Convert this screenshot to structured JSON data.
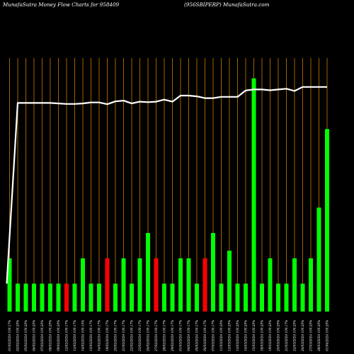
{
  "header": {
    "title_left": "MunafaSutra  Money Flow  Charts for 958409",
    "title_right": "(956SBIPERP) MunafaSutra.com"
  },
  "colors": {
    "background": "#000000",
    "grid": "#cc7a00",
    "up": "#00ff00",
    "down": "#ff0000",
    "line": "#ffffff",
    "label": "#ffffff"
  },
  "chart_data": {
    "type": "bar",
    "title": "",
    "ylim": [
      0,
      100
    ],
    "categories": [
      "01/02/2024 100.17%",
      "02/02/2024 100.20%",
      "05/02/2024 100.20%",
      "06/02/2024 100.20%",
      "07/02/2024 100.20%",
      "08/02/2024 100.20%",
      "09/02/2024 100.20%",
      "12/02/2024 100.17%",
      "13/02/2024 100.17%",
      "14/02/2024 100.14%",
      "15/02/2024 100.17%",
      "16/02/2024 100.17%",
      "19/02/2024 100.17%",
      "20/02/2024 100.17%",
      "21/02/2024 100.17%",
      "22/02/2024 100.17%",
      "23/02/2024 100.17%",
      "26/02/2024 100.17%",
      "27/02/2024 100.17%",
      "28/02/2024 100.17%",
      "29/02/2024 100.17%",
      "01/03/2024 100.17%",
      "04/03/2024 100.17%",
      "05/03/2024 100.17%",
      "06/03/2024 100.17%",
      "07/03/2024 100.17%",
      "11/03/2024 100.20%",
      "12/03/2024 100.20%",
      "13/03/2024 100.20%",
      "14/03/2024 100.20%",
      "15/03/2024 100.20%",
      "18/03/2024 100.20%",
      "19/03/2024 100.20%",
      "20/03/2024 100.20%",
      "21/03/2024 100.17%",
      "22/03/2024 100.20%",
      "26/03/2024 100.20%",
      "27/03/2024 100.20%",
      "28/03/2024 100.20%",
      "01/04/2024 100.20%"
    ],
    "volume": [
      21,
      11,
      11,
      11,
      11,
      11,
      11,
      11,
      11,
      21,
      11,
      11,
      21,
      11,
      21,
      11,
      21,
      31,
      21,
      11,
      11,
      21,
      21,
      11,
      21,
      31,
      11,
      24,
      11,
      11,
      92,
      11,
      21,
      11,
      11,
      21,
      11,
      21,
      41,
      72
    ],
    "direction": [
      "up",
      "up",
      "up",
      "up",
      "up",
      "up",
      "up",
      "down",
      "up",
      "up",
      "up",
      "up",
      "down",
      "up",
      "up",
      "up",
      "up",
      "up",
      "down",
      "up",
      "up",
      "up",
      "up",
      "up",
      "down",
      "up",
      "up",
      "up",
      "up",
      "up",
      "up",
      "up",
      "up",
      "up",
      "up",
      "up",
      "up",
      "up",
      "up",
      "up"
    ],
    "money_flow_line": [
      11,
      82.3,
      82.3,
      82.3,
      82.3,
      82.3,
      82.1,
      81.9,
      81.9,
      82.1,
      82.5,
      82.5,
      81.8,
      82.9,
      83.2,
      82.1,
      82.8,
      82.6,
      82.8,
      83.6,
      82.8,
      85.2,
      85.2,
      84.9,
      84.2,
      84.2,
      84.7,
      84.7,
      84.7,
      87.2,
      87.6,
      87.6,
      87.3,
      87.6,
      87.9,
      87.0,
      88.6,
      88.6,
      88.6,
      88.6
    ]
  }
}
